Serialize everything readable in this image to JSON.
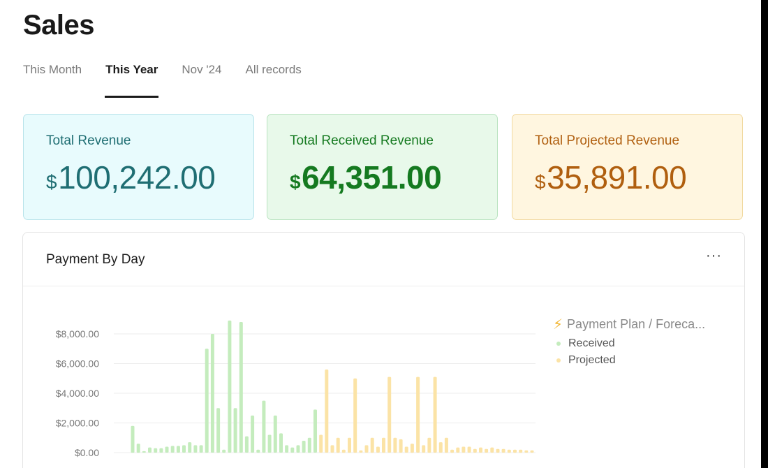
{
  "header": {
    "title": "Sales"
  },
  "tabs": [
    {
      "label": "This Month",
      "active": false
    },
    {
      "label": "This Year",
      "active": true
    },
    {
      "label": "Nov '24",
      "active": false
    },
    {
      "label": "All records",
      "active": false
    }
  ],
  "cards": {
    "total": {
      "label": "Total Revenue",
      "currency": "$",
      "amount": "100,242.00"
    },
    "received": {
      "label": "Total Received Revenue",
      "currency": "$",
      "amount": "64,351.00"
    },
    "projected": {
      "label": "Total Projected Revenue",
      "currency": "$",
      "amount": "35,891.00"
    }
  },
  "panel": {
    "title": "Payment By Day",
    "more_label": "···"
  },
  "legend": {
    "icon": "lightning-bolt-icon",
    "title": "Payment Plan / Foreca...",
    "items": [
      {
        "label": "Received",
        "color": "#c4ecbd"
      },
      {
        "label": "Projected",
        "color": "#fbe3a6"
      }
    ]
  },
  "chart_data": {
    "type": "bar",
    "ylim": [
      0,
      9000
    ],
    "yticks": [
      "$0.00",
      "$2,000.00",
      "$4,000.00",
      "$6,000.00",
      "$8,000.00"
    ],
    "ytick_values": [
      0,
      2000,
      4000,
      6000,
      8000
    ],
    "series": [
      {
        "name": "Received",
        "color": "#c4ecbd",
        "values": [
          1800,
          600,
          100,
          350,
          300,
          300,
          400,
          450,
          450,
          500,
          700,
          500,
          500,
          7000,
          8000,
          3000,
          200,
          8900,
          3000,
          8800,
          1100,
          2500,
          200,
          3500,
          1200,
          2500,
          1300,
          500,
          350,
          500,
          800,
          1000,
          2900
        ]
      },
      {
        "name": "Projected",
        "color": "#fbe3a6",
        "values": [
          1200,
          5600,
          500,
          1000,
          200,
          1000,
          5000,
          150,
          500,
          1000,
          400,
          1000,
          5100,
          1000,
          900,
          400,
          600,
          5100,
          500,
          1000,
          5100,
          700,
          1000,
          200,
          350,
          400,
          400,
          250,
          350,
          250,
          350,
          250,
          250,
          200,
          200,
          200,
          150,
          150
        ]
      }
    ],
    "grid": true,
    "legend_position": "right"
  }
}
